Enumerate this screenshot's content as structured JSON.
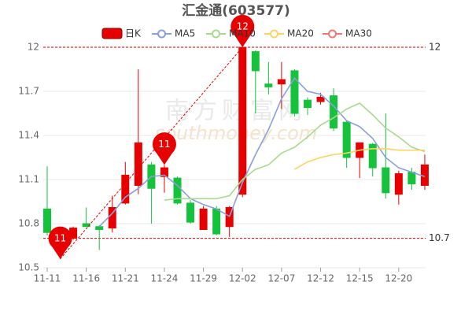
{
  "chart_data": {
    "type": "candlestick",
    "title": "汇金通(603577)",
    "watermark": "南方财富网",
    "watermark_sub": "southmoney.com",
    "categories": [
      "11-11",
      null,
      null,
      "11-16",
      null,
      null,
      "11-21",
      null,
      null,
      "11-24",
      null,
      null,
      "11-29",
      null,
      null,
      "12-02",
      null,
      null,
      "12-07",
      null,
      null,
      "12-12",
      null,
      null,
      "12-15",
      null,
      null,
      "12-20",
      null,
      null
    ],
    "candles": {
      "name": "日K",
      "up_color": "#e60000",
      "down_color": "#14c23c",
      "open": [
        10.9,
        10.7,
        10.7,
        10.8,
        10.78,
        10.77,
        10.94,
        11.06,
        11.2,
        11.12,
        11.11,
        10.94,
        10.76,
        10.9,
        10.78,
        11.0,
        11.97,
        11.75,
        11.75,
        11.84,
        11.64,
        11.63,
        11.67,
        11.49,
        11.25,
        11.34,
        11.18,
        11.0,
        11.15,
        11.06
      ],
      "close": [
        10.74,
        10.72,
        10.77,
        10.78,
        10.76,
        10.91,
        11.13,
        11.35,
        11.04,
        11.18,
        10.94,
        10.81,
        10.9,
        10.73,
        10.91,
        12.0,
        11.84,
        11.73,
        11.78,
        11.55,
        11.59,
        11.66,
        11.45,
        11.25,
        11.35,
        11.18,
        11.01,
        11.14,
        11.07,
        11.2
      ],
      "low": [
        10.72,
        10.56,
        10.69,
        10.78,
        10.62,
        10.74,
        10.93,
        11.0,
        10.8,
        11.01,
        10.93,
        10.8,
        10.76,
        10.72,
        10.71,
        10.98,
        11.55,
        11.68,
        11.58,
        11.53,
        11.54,
        11.61,
        11.43,
        11.18,
        11.11,
        11.12,
        10.97,
        10.93,
        11.03,
        11.03
      ],
      "high": [
        11.19,
        10.74,
        10.78,
        10.91,
        10.79,
        10.99,
        11.22,
        11.85,
        11.22,
        11.2,
        11.12,
        10.96,
        10.92,
        10.92,
        10.92,
        12.0,
        11.98,
        11.9,
        11.9,
        11.85,
        11.66,
        11.69,
        11.72,
        11.5,
        11.35,
        11.35,
        11.55,
        11.16,
        11.18,
        11.27
      ]
    },
    "series": [
      {
        "name": "MA5",
        "color": "#8a9fd8",
        "values": [
          null,
          null,
          null,
          null,
          10.78,
          10.87,
          10.98,
          11.04,
          11.12,
          11.13,
          11.06,
          10.97,
          10.93,
          10.9,
          10.85,
          11.08,
          11.27,
          11.44,
          11.65,
          11.79,
          11.7,
          11.68,
          11.6,
          11.5,
          11.46,
          11.38,
          11.25,
          11.18,
          11.15,
          11.12
        ]
      },
      {
        "name": "MA10",
        "color": "#a9d88e",
        "values": [
          null,
          null,
          null,
          null,
          null,
          null,
          null,
          null,
          null,
          10.96,
          10.97,
          10.97,
          10.97,
          10.97,
          10.99,
          11.1,
          11.17,
          11.2,
          11.28,
          11.32,
          11.39,
          11.47,
          11.52,
          11.58,
          11.62,
          11.54,
          11.45,
          11.39,
          11.32,
          11.29
        ]
      },
      {
        "name": "MA20",
        "color": "#f8d563",
        "values": [
          null,
          null,
          null,
          null,
          null,
          null,
          null,
          null,
          null,
          null,
          null,
          null,
          null,
          null,
          null,
          null,
          null,
          null,
          null,
          11.17,
          11.22,
          11.25,
          11.27,
          11.28,
          11.3,
          11.31,
          11.31,
          11.3,
          11.3,
          11.3
        ]
      },
      {
        "name": "MA30",
        "color": "#ee7777",
        "values": [
          null,
          null,
          null,
          null,
          null,
          null,
          null,
          null,
          null,
          null,
          null,
          null,
          null,
          null,
          null,
          null,
          null,
          null,
          null,
          null,
          null,
          null,
          null,
          null,
          null,
          null,
          null,
          null,
          null,
          null
        ]
      }
    ],
    "ylim": [
      10.5,
      12
    ],
    "yticks": [
      10.5,
      10.8,
      11.1,
      11.4,
      11.7,
      12
    ],
    "grid": true,
    "hlines": [
      12,
      10.7
    ],
    "hline_color": "#cc0000",
    "markers": [
      {
        "label": "11",
        "value": 10.56
      },
      {
        "label": "11",
        "value": 11.2
      },
      {
        "label": "12",
        "value": 12
      }
    ],
    "marker_color": "#e60000"
  }
}
